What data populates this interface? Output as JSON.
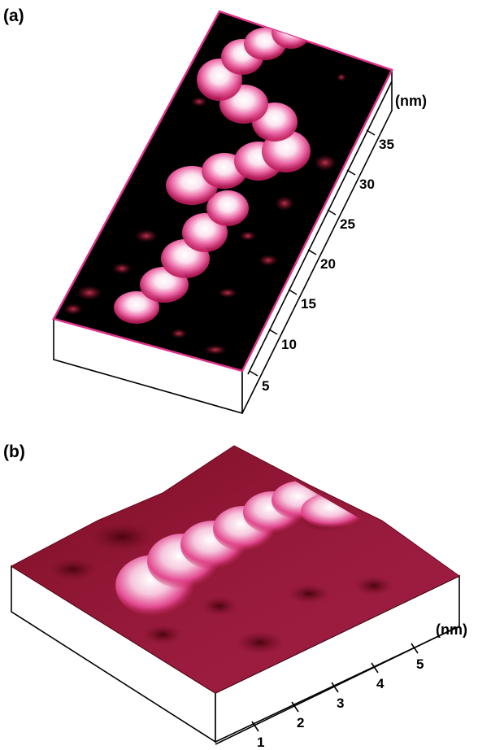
{
  "panel_a": {
    "label": "(a)",
    "axis_unit": "(nm)",
    "ticks": [
      "5",
      "10",
      "15",
      "20",
      "25",
      "30",
      "35"
    ],
    "colors": {
      "background": "#000000",
      "peak": "#ffffff",
      "mid": "#e8509a",
      "low": "#7a0a24"
    }
  },
  "panel_b": {
    "label": "(b)",
    "axis_unit": "(nm)",
    "ticks": [
      "1",
      "2",
      "3",
      "4",
      "5"
    ],
    "colors": {
      "surface": "#8e1430",
      "peak": "#ffffff",
      "mid": "#e8509a"
    }
  }
}
